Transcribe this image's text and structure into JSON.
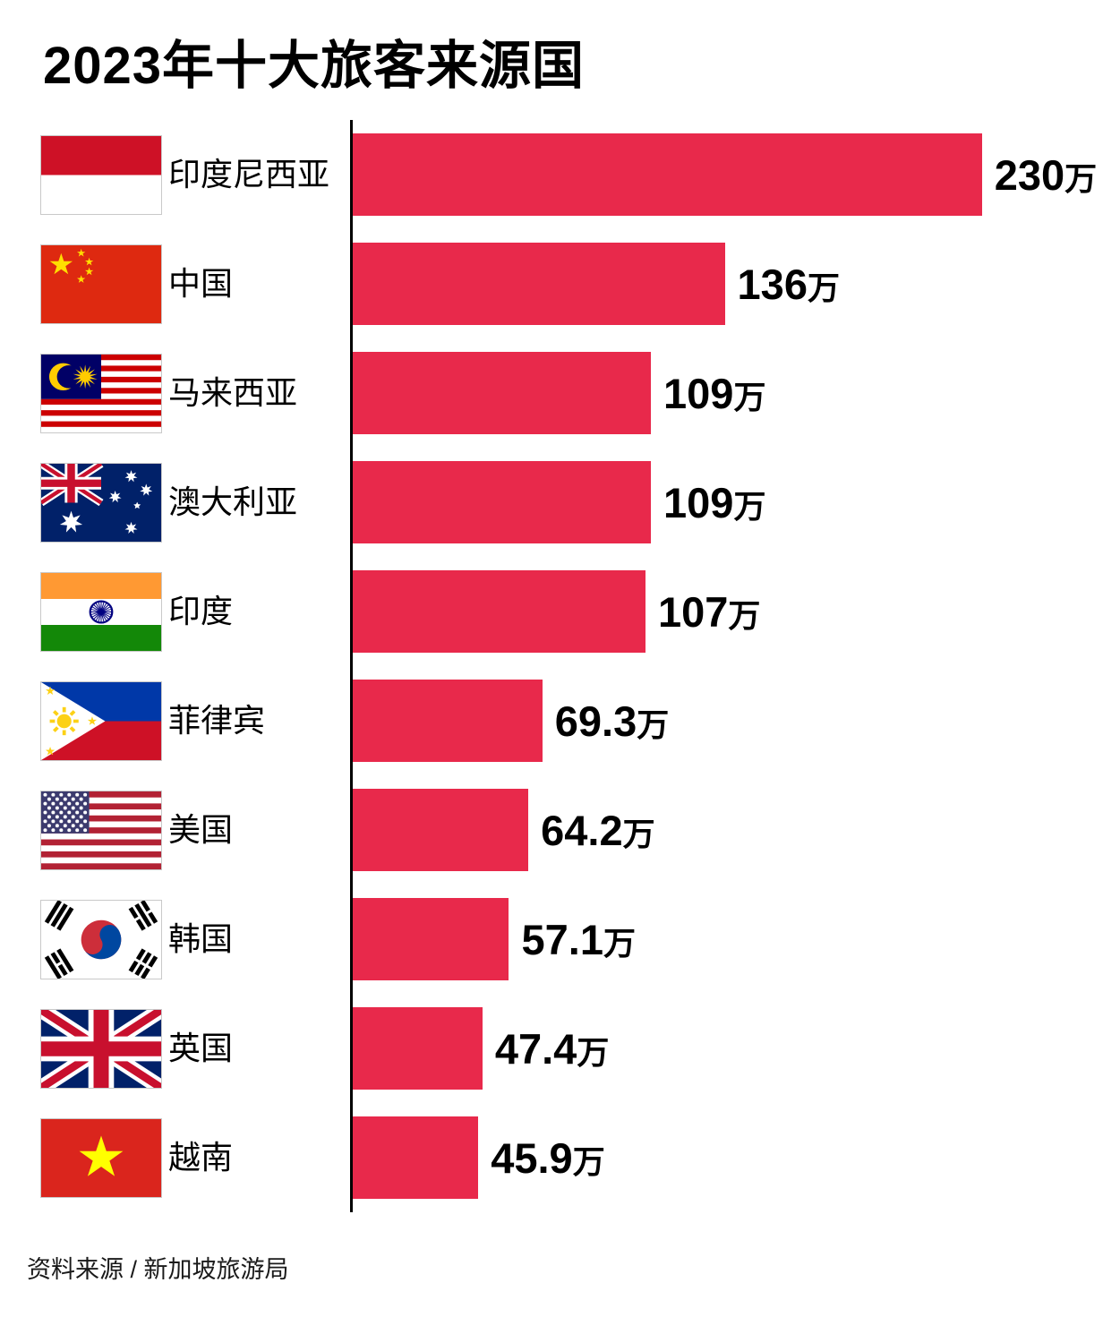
{
  "title": "2023年十大旅客来源国",
  "source": "资料来源 / 新加坡旅游局",
  "colors": {
    "bar": "#E8294B",
    "axis": "#000000",
    "title_text": "#000000",
    "source_text": "#1A1A1A"
  },
  "chart_data": {
    "type": "bar",
    "orientation": "horizontal",
    "title": "2023年十大旅客来源国",
    "unit": "万",
    "xlim": [
      0,
      230
    ],
    "grid": false,
    "legend": false,
    "categories": [
      "印度尼西亚",
      "中国",
      "马来西亚",
      "澳大利亚",
      "印度",
      "菲律宾",
      "美国",
      "韩国",
      "英国",
      "越南"
    ],
    "values": [
      230,
      136,
      109,
      109,
      107,
      69.3,
      64.2,
      57.1,
      47.4,
      45.9
    ],
    "value_labels": [
      "230万",
      "136万",
      "109万",
      "109万",
      "107万",
      "69.3万",
      "64.2万",
      "57.1万",
      "47.4万",
      "45.9万"
    ],
    "flags": [
      "indonesia",
      "china",
      "malaysia",
      "australia",
      "india",
      "philippines",
      "usa",
      "south-korea",
      "uk",
      "vietnam"
    ]
  }
}
